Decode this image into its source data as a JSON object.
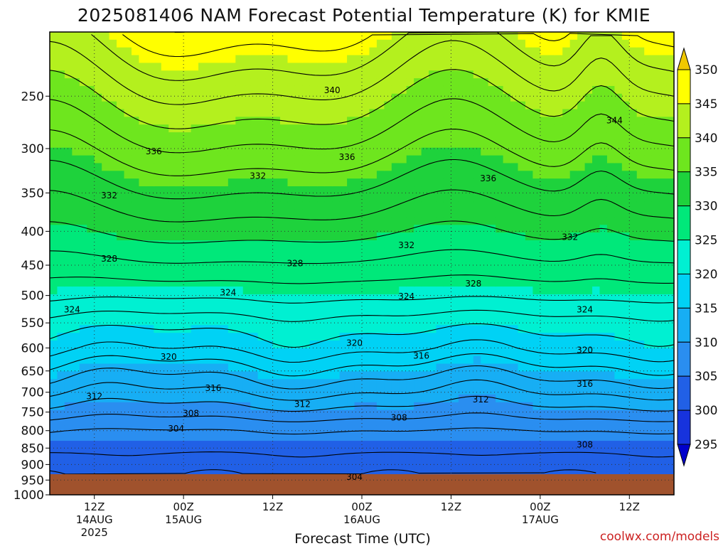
{
  "chart_data": {
    "type": "heatmap",
    "title": "2025081406 NAM Forecast Potential Temperature (K) for KMIE",
    "xlabel": "Forecast Time (UTC)",
    "ylabel": "",
    "y_scale": "log-pressure",
    "y_unit": "hPa",
    "ylim": [
      1000,
      200
    ],
    "y_ticks": [
      250,
      300,
      350,
      400,
      450,
      500,
      550,
      600,
      650,
      700,
      750,
      800,
      850,
      900,
      950,
      1000
    ],
    "x_ticks": [
      {
        "hour": 12,
        "label": "12Z",
        "sub": [
          "14AUG",
          "2025"
        ]
      },
      {
        "hour": 24,
        "label": "00Z",
        "sub": [
          "15AUG"
        ]
      },
      {
        "hour": 36,
        "label": "12Z",
        "sub": []
      },
      {
        "hour": 48,
        "label": "00Z",
        "sub": [
          "16AUG"
        ]
      },
      {
        "hour": 60,
        "label": "12Z",
        "sub": []
      },
      {
        "hour": 72,
        "label": "00Z",
        "sub": [
          "17AUG"
        ]
      },
      {
        "hour": 84,
        "label": "12Z",
        "sub": []
      }
    ],
    "xlim_hours": [
      6,
      90
    ],
    "grid": true,
    "colorbar": {
      "levels": [
        295,
        300,
        305,
        310,
        315,
        320,
        325,
        330,
        335,
        340,
        345,
        350
      ],
      "colors": [
        "#0000cc",
        "#1733dd",
        "#2160e6",
        "#2a8ef0",
        "#17aef4",
        "#00d2f5",
        "#00f0d2",
        "#00e87a",
        "#1ed23c",
        "#6ee61e",
        "#b4f01e",
        "#ffff00",
        "#f0c800"
      ]
    },
    "contour_labels": [
      {
        "value": "340",
        "hour": 44,
        "p": 245
      },
      {
        "value": "344",
        "hour": 82,
        "p": 272
      },
      {
        "value": "336",
        "hour": 20,
        "p": 303
      },
      {
        "value": "336",
        "hour": 46,
        "p": 309
      },
      {
        "value": "336",
        "hour": 65,
        "p": 333
      },
      {
        "value": "332",
        "hour": 14,
        "p": 353
      },
      {
        "value": "332",
        "hour": 34,
        "p": 330
      },
      {
        "value": "332",
        "hour": 54,
        "p": 420
      },
      {
        "value": "332",
        "hour": 76,
        "p": 408
      },
      {
        "value": "328",
        "hour": 14,
        "p": 440
      },
      {
        "value": "328",
        "hour": 39,
        "p": 447
      },
      {
        "value": "328",
        "hour": 63,
        "p": 480
      },
      {
        "value": "324",
        "hour": 9,
        "p": 525
      },
      {
        "value": "324",
        "hour": 30,
        "p": 495
      },
      {
        "value": "324",
        "hour": 54,
        "p": 502
      },
      {
        "value": "324",
        "hour": 78,
        "p": 525
      },
      {
        "value": "320",
        "hour": 22,
        "p": 619
      },
      {
        "value": "320",
        "hour": 47,
        "p": 590
      },
      {
        "value": "320",
        "hour": 78,
        "p": 605
      },
      {
        "value": "316",
        "hour": 56,
        "p": 617
      },
      {
        "value": "316",
        "hour": 28,
        "p": 690
      },
      {
        "value": "316",
        "hour": 78,
        "p": 680
      },
      {
        "value": "312",
        "hour": 12,
        "p": 710
      },
      {
        "value": "312",
        "hour": 40,
        "p": 730
      },
      {
        "value": "312",
        "hour": 64,
        "p": 718
      },
      {
        "value": "308",
        "hour": 25,
        "p": 753
      },
      {
        "value": "308",
        "hour": 53,
        "p": 765
      },
      {
        "value": "308",
        "hour": 78,
        "p": 840
      },
      {
        "value": "304",
        "hour": 23,
        "p": 795
      },
      {
        "value": "304",
        "hour": 47,
        "p": 940
      }
    ],
    "levels_profile": [
      {
        "p": 1000,
        "theta": 300
      },
      {
        "p": 950,
        "theta": 302
      },
      {
        "p": 900,
        "theta": 303
      },
      {
        "p": 850,
        "theta": 304.5
      },
      {
        "p": 800,
        "theta": 306
      },
      {
        "p": 750,
        "theta": 309
      },
      {
        "p": 700,
        "theta": 312
      },
      {
        "p": 650,
        "theta": 315
      },
      {
        "p": 600,
        "theta": 318.5
      },
      {
        "p": 550,
        "theta": 321
      },
      {
        "p": 500,
        "theta": 324.5
      },
      {
        "p": 450,
        "theta": 327.5
      },
      {
        "p": 400,
        "theta": 330.5
      },
      {
        "p": 350,
        "theta": 333.5
      },
      {
        "p": 300,
        "theta": 337
      },
      {
        "p": 250,
        "theta": 341
      },
      {
        "p": 200,
        "theta": 346
      }
    ]
  },
  "credit": "coolwx.com/models"
}
